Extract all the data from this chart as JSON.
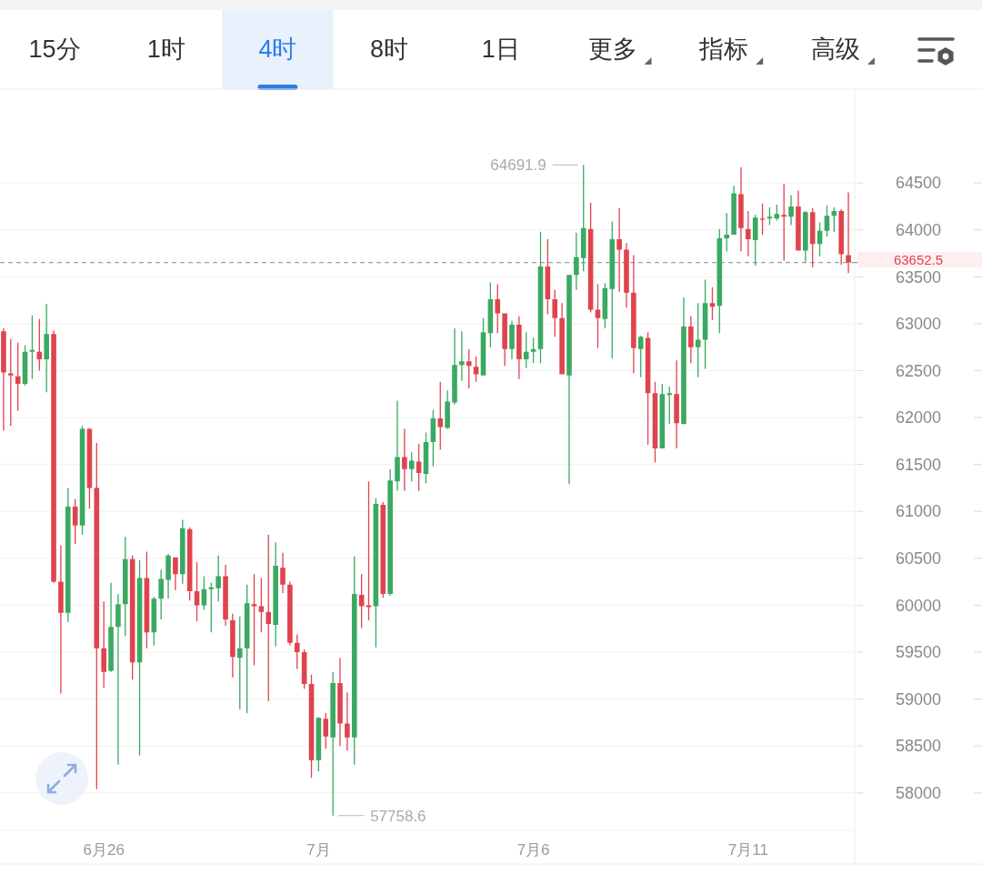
{
  "chart_data": [
    {
      "type": "other",
      "annotations": [
        "15分",
        "1时",
        "4时",
        "8时",
        "1日",
        "更多",
        "指标",
        "高级"
      ]
    },
    {
      "type": "candlestick",
      "categories": [
        null,
        null,
        null,
        null,
        null,
        null,
        null,
        null,
        null,
        null,
        null,
        null,
        null,
        null,
        "6月26",
        null,
        null,
        null,
        null,
        null,
        null,
        null,
        null,
        null,
        null,
        null,
        null,
        null,
        null,
        null,
        null,
        null,
        null,
        null,
        null,
        null,
        null,
        null,
        null,
        null,
        null,
        null,
        null,
        null,
        "7月",
        null,
        null,
        null,
        null,
        null,
        null,
        null,
        null,
        null,
        null,
        null,
        null,
        null,
        null,
        null,
        null,
        null,
        null,
        null,
        null,
        null,
        null,
        null,
        null,
        null,
        null,
        null,
        null,
        null,
        "7月6",
        null,
        null,
        null,
        null,
        null,
        null,
        null,
        null,
        null,
        null,
        null,
        null,
        null,
        null,
        null,
        null,
        null,
        null,
        null,
        null,
        null,
        null,
        null,
        null,
        null,
        null,
        null,
        null,
        null,
        "7月11",
        null,
        null,
        null,
        null,
        null,
        null,
        null,
        null,
        null,
        null,
        null,
        null,
        null,
        null
      ],
      "ohlc": [
        [
          62920,
          62950,
          61860,
          62480
        ],
        [
          62470,
          62840,
          61910,
          62450
        ],
        [
          62440,
          62800,
          62070,
          62360
        ],
        [
          62360,
          62770,
          62340,
          62700
        ],
        [
          62700,
          63090,
          62410,
          62720
        ],
        [
          62700,
          63050,
          62500,
          62620
        ],
        [
          62620,
          63210,
          62270,
          62890
        ],
        [
          62890,
          62930,
          60240,
          60250
        ],
        [
          60250,
          60640,
          59060,
          59920
        ],
        [
          59920,
          61250,
          59820,
          61050
        ],
        [
          61050,
          61130,
          60650,
          60850
        ],
        [
          60850,
          61910,
          60750,
          61880
        ],
        [
          61880,
          61890,
          61030,
          61250
        ],
        [
          61250,
          61730,
          58040,
          59540
        ],
        [
          59540,
          60040,
          59120,
          59290
        ],
        [
          59300,
          60240,
          59290,
          59770
        ],
        [
          59770,
          60120,
          58300,
          60010
        ],
        [
          60010,
          60730,
          59670,
          60490
        ],
        [
          60490,
          60530,
          59210,
          59390
        ],
        [
          59390,
          60480,
          58400,
          60290
        ],
        [
          60290,
          60570,
          59540,
          59710
        ],
        [
          59710,
          60090,
          59570,
          60070
        ],
        [
          60070,
          60380,
          59850,
          60280
        ],
        [
          60270,
          60550,
          60070,
          60530
        ],
        [
          60510,
          60510,
          60160,
          60330
        ],
        [
          60330,
          60910,
          60230,
          60820
        ],
        [
          60810,
          60830,
          60050,
          60150
        ],
        [
          60150,
          60460,
          59830,
          60000
        ],
        [
          60000,
          60310,
          59950,
          60170
        ],
        [
          60170,
          60240,
          59710,
          60190
        ],
        [
          60180,
          60530,
          60040,
          60310
        ],
        [
          60310,
          60430,
          59780,
          59850
        ],
        [
          59840,
          59910,
          59230,
          59450
        ],
        [
          59440,
          59880,
          58890,
          59540
        ],
        [
          59540,
          60220,
          58850,
          60020
        ],
        [
          60010,
          60330,
          59360,
          59990
        ],
        [
          59990,
          60290,
          59710,
          59930
        ],
        [
          59930,
          60750,
          58980,
          59800
        ],
        [
          59790,
          60670,
          59560,
          60420
        ],
        [
          60400,
          60560,
          60130,
          60220
        ],
        [
          60220,
          60250,
          59570,
          59600
        ],
        [
          59600,
          59690,
          59320,
          59500
        ],
        [
          59500,
          59530,
          59110,
          59160
        ],
        [
          59160,
          59260,
          58160,
          58350
        ],
        [
          58350,
          58810,
          58230,
          58800
        ],
        [
          58790,
          58850,
          58470,
          58600
        ],
        [
          58590,
          59290,
          57758.6,
          59170
        ],
        [
          59170,
          59440,
          58500,
          58740
        ],
        [
          58740,
          59070,
          58450,
          58590
        ],
        [
          58590,
          60520,
          58300,
          60120
        ],
        [
          60110,
          60330,
          59760,
          59990
        ],
        [
          60000,
          61320,
          59840,
          59980
        ],
        [
          59990,
          61140,
          59550,
          61080
        ],
        [
          61070,
          61100,
          60080,
          60120
        ],
        [
          60120,
          61450,
          60100,
          61330
        ],
        [
          61320,
          62180,
          61220,
          61580
        ],
        [
          61580,
          61880,
          61220,
          61450
        ],
        [
          61450,
          61630,
          61320,
          61540
        ],
        [
          61530,
          61720,
          61220,
          61410
        ],
        [
          61400,
          61840,
          61300,
          61740
        ],
        [
          61740,
          62080,
          61480,
          61990
        ],
        [
          61990,
          62380,
          61660,
          61900
        ],
        [
          61890,
          62290,
          61880,
          62170
        ],
        [
          62160,
          62950,
          62140,
          62560
        ],
        [
          62560,
          62920,
          62390,
          62600
        ],
        [
          62600,
          62730,
          62310,
          62550
        ],
        [
          62540,
          62650,
          62380,
          62460
        ],
        [
          62450,
          63060,
          62450,
          62910
        ],
        [
          62900,
          63440,
          62750,
          63260
        ],
        [
          63260,
          63420,
          62900,
          63110
        ],
        [
          63110,
          63110,
          62550,
          62730
        ],
        [
          62730,
          63030,
          62620,
          62990
        ],
        [
          62990,
          63080,
          62410,
          62620
        ],
        [
          62620,
          62910,
          62530,
          62700
        ],
        [
          62700,
          62850,
          62580,
          62730
        ],
        [
          62730,
          63980,
          62580,
          63610
        ],
        [
          63610,
          63900,
          63100,
          63260
        ],
        [
          63260,
          63360,
          62860,
          63060
        ],
        [
          63060,
          63220,
          62460,
          62460
        ],
        [
          62450,
          63520,
          61290,
          63520
        ],
        [
          63520,
          63970,
          63360,
          63710
        ],
        [
          63700,
          64691.9,
          63560,
          64020
        ],
        [
          64010,
          64290,
          63120,
          63150
        ],
        [
          63150,
          63420,
          62740,
          63060
        ],
        [
          63050,
          63430,
          62950,
          63380
        ],
        [
          63370,
          64090,
          62630,
          63900
        ],
        [
          63900,
          64230,
          63340,
          63790
        ],
        [
          63790,
          63860,
          63170,
          63330
        ],
        [
          63330,
          63730,
          62470,
          62740
        ],
        [
          62730,
          62870,
          62430,
          62860
        ],
        [
          62850,
          62910,
          61710,
          62260
        ],
        [
          62260,
          62380,
          61520,
          61670
        ],
        [
          61670,
          62360,
          61670,
          62250
        ],
        [
          62240,
          62330,
          61930,
          62260
        ],
        [
          62250,
          62610,
          61670,
          61940
        ],
        [
          61930,
          63280,
          61930,
          62970
        ],
        [
          62970,
          63080,
          62580,
          62750
        ],
        [
          62750,
          63220,
          62430,
          62830
        ],
        [
          62830,
          63470,
          62520,
          63220
        ],
        [
          63220,
          63390,
          63040,
          63180
        ],
        [
          63190,
          64010,
          62900,
          63910
        ],
        [
          63910,
          64180,
          63770,
          63950
        ],
        [
          63950,
          64470,
          63950,
          64390
        ],
        [
          64380,
          64670,
          63770,
          64020
        ],
        [
          64010,
          64200,
          63720,
          63900
        ],
        [
          63890,
          64160,
          63620,
          64130
        ],
        [
          64120,
          64280,
          63950,
          64110
        ],
        [
          64120,
          64240,
          64050,
          64140
        ],
        [
          64120,
          64270,
          64100,
          64170
        ],
        [
          64160,
          64490,
          63670,
          64140
        ],
        [
          64140,
          64370,
          64050,
          64250
        ],
        [
          64250,
          64420,
          63780,
          63780
        ],
        [
          63780,
          64200,
          63660,
          64190
        ],
        [
          64190,
          64230,
          63600,
          63850
        ],
        [
          63850,
          64080,
          63720,
          63990
        ],
        [
          63990,
          64260,
          63930,
          64150
        ],
        [
          64150,
          64240,
          63980,
          64200
        ],
        [
          64200,
          64220,
          63630,
          63740
        ],
        [
          63730,
          64400,
          63540,
          63652.5
        ]
      ],
      "colors": [
        "#e0434e",
        "#e0434e",
        "#e0434e",
        "#3aa962",
        "#3aa962",
        "#e0434e",
        "#3aa962",
        "#e0434e",
        "#e0434e",
        "#3aa962",
        "#e0434e",
        "#3aa962",
        "#e0434e",
        "#e0434e",
        "#e0434e",
        "#3aa962",
        "#3aa962",
        "#3aa962",
        "#e0434e",
        "#3aa962",
        "#e0434e",
        "#3aa962",
        "#3aa962",
        "#3aa962",
        "#e0434e",
        "#3aa962",
        "#e0434e",
        "#e0434e",
        "#3aa962",
        "#3aa962",
        "#3aa962",
        "#e0434e",
        "#e0434e",
        "#3aa962",
        "#3aa962",
        "#e0434e",
        "#e0434e",
        "#e0434e",
        "#3aa962",
        "#e0434e",
        "#e0434e",
        "#e0434e",
        "#e0434e",
        "#e0434e",
        "#3aa962",
        "#e0434e",
        "#3aa962",
        "#e0434e",
        "#e0434e",
        "#3aa962",
        "#e0434e",
        "#e0434e",
        "#3aa962",
        "#e0434e",
        "#3aa962",
        "#3aa962",
        "#e0434e",
        "#3aa962",
        "#e0434e",
        "#3aa962",
        "#3aa962",
        "#e0434e",
        "#3aa962",
        "#3aa962",
        "#3aa962",
        "#e0434e",
        "#e0434e",
        "#3aa962",
        "#3aa962",
        "#e0434e",
        "#e0434e",
        "#3aa962",
        "#e0434e",
        "#3aa962",
        "#3aa962",
        "#3aa962",
        "#e0434e",
        "#e0434e",
        "#e0434e",
        "#3aa962",
        "#3aa962",
        "#3aa962",
        "#e0434e",
        "#e0434e",
        "#3aa962",
        "#3aa962",
        "#e0434e",
        "#e0434e",
        "#e0434e",
        "#3aa962",
        "#e0434e",
        "#e0434e",
        "#3aa962",
        "#3aa962",
        "#e0434e",
        "#3aa962",
        "#e0434e",
        "#3aa962",
        "#3aa962",
        "#e0434e",
        "#3aa962",
        "#3aa962",
        "#3aa962",
        "#e0434e",
        "#e0434e",
        "#3aa962",
        "#e0434e",
        "#3aa962",
        "#3aa962",
        "#e0434e",
        "#3aa962",
        "#e0434e",
        "#3aa962",
        "#e0434e",
        "#3aa962",
        "#3aa962",
        "#3aa962",
        "#e0434e",
        "#e0434e"
      ],
      "ylim": [
        57600,
        65500
      ],
      "yticks": [
        58000,
        58500,
        59000,
        59500,
        60000,
        60500,
        61000,
        61500,
        62000,
        62500,
        63000,
        63500,
        64000,
        64500
      ],
      "grid": "y",
      "ref_lines": [
        {
          "axis": "y",
          "value": 63652.5,
          "label": "63652.5",
          "color": "#9e9e9e",
          "line_style": "dashed"
        }
      ],
      "annotations": [
        "64691.9",
        "57758.6"
      ]
    }
  ]
}
